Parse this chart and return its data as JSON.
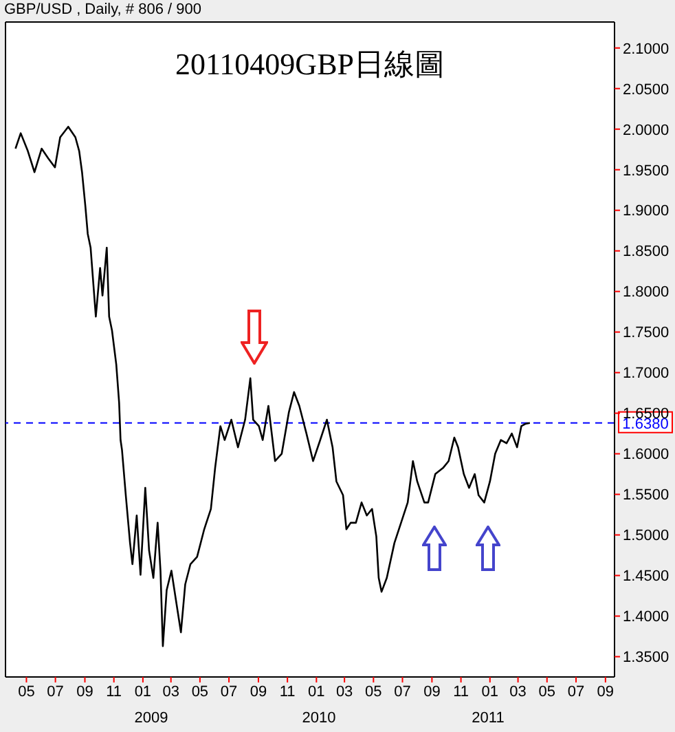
{
  "chart_data": {
    "type": "line",
    "title": "20110409GBP日線圖",
    "subtitle": "GBP/USD , Daily, # 806 / 900",
    "x": [
      "2008-04-08",
      "2008-04-19",
      "2008-05-04",
      "2008-05-18",
      "2008-06-02",
      "2008-06-16",
      "2008-06-30",
      "2008-07-11",
      "2008-07-28",
      "2008-08-12",
      "2008-08-20",
      "2008-08-26",
      "2008-09-02",
      "2008-09-07",
      "2008-09-13",
      "2008-09-24",
      "2008-10-03",
      "2008-10-08",
      "2008-10-17",
      "2008-10-22",
      "2008-10-28",
      "2008-11-06",
      "2008-11-12",
      "2008-11-15",
      "2008-11-18",
      "2008-11-26",
      "2008-12-05",
      "2008-12-10",
      "2008-12-19",
      "2008-12-27",
      "2009-01-06",
      "2009-01-14",
      "2009-01-23",
      "2009-02-01",
      "2009-02-07",
      "2009-02-12",
      "2009-02-20",
      "2009-03-02",
      "2009-03-13",
      "2009-03-22",
      "2009-03-31",
      "2009-04-11",
      "2009-04-25",
      "2009-05-10",
      "2009-05-24",
      "2009-06-02",
      "2009-06-13",
      "2009-06-22",
      "2009-07-06",
      "2009-07-20",
      "2009-08-04",
      "2009-08-15",
      "2009-08-21",
      "2009-09-02",
      "2009-09-10",
      "2009-09-22",
      "2009-10-06",
      "2009-10-20",
      "2009-11-04",
      "2009-11-15",
      "2009-11-26",
      "2009-12-11",
      "2009-12-25",
      "2010-01-09",
      "2010-01-23",
      "2010-02-04",
      "2010-02-12",
      "2010-02-26",
      "2010-03-05",
      "2010-03-14",
      "2010-03-25",
      "2010-04-06",
      "2010-04-17",
      "2010-04-28",
      "2010-05-07",
      "2010-05-12",
      "2010-05-18",
      "2010-05-29",
      "2010-06-14",
      "2010-06-28",
      "2010-07-12",
      "2010-07-23",
      "2010-08-01",
      "2010-08-16",
      "2010-08-24",
      "2010-09-08",
      "2010-09-25",
      "2010-10-06",
      "2010-10-18",
      "2010-10-26",
      "2010-11-07",
      "2010-11-18",
      "2010-11-30",
      "2010-12-08",
      "2010-12-20",
      "2011-01-01",
      "2011-01-12",
      "2011-01-24",
      "2011-02-05",
      "2011-02-16",
      "2011-02-27",
      "2011-03-08",
      "2011-03-17",
      "2011-03-26"
    ],
    "series": [
      {
        "color": "#000000",
        "values": [
          1.976,
          1.995,
          1.973,
          1.947,
          1.976,
          1.964,
          1.953,
          1.99,
          2.003,
          1.99,
          1.973,
          1.947,
          1.905,
          1.871,
          1.854,
          1.769,
          1.829,
          1.795,
          1.854,
          1.769,
          1.752,
          1.71,
          1.663,
          1.617,
          1.605,
          1.549,
          1.49,
          1.464,
          1.524,
          1.451,
          1.558,
          1.481,
          1.447,
          1.515,
          1.456,
          1.363,
          1.432,
          1.456,
          1.414,
          1.38,
          1.439,
          1.464,
          1.473,
          1.507,
          1.532,
          1.583,
          1.634,
          1.617,
          1.642,
          1.608,
          1.642,
          1.693,
          1.642,
          1.634,
          1.617,
          1.659,
          1.591,
          1.6,
          1.651,
          1.676,
          1.659,
          1.625,
          1.591,
          1.617,
          1.642,
          1.608,
          1.566,
          1.549,
          1.507,
          1.515,
          1.515,
          1.54,
          1.524,
          1.532,
          1.498,
          1.447,
          1.43,
          1.447,
          1.49,
          1.515,
          1.54,
          1.591,
          1.566,
          1.54,
          1.54,
          1.575,
          1.583,
          1.591,
          1.62,
          1.608,
          1.575,
          1.558,
          1.575,
          1.549,
          1.54,
          1.566,
          1.6,
          1.617,
          1.613,
          1.625,
          1.608,
          1.634,
          1.637,
          1.638
        ]
      }
    ],
    "xlim": [
      "2008-03-18",
      "2011-09-20"
    ],
    "xticks": [
      {
        "value": "2008-05-01",
        "label": "05"
      },
      {
        "value": "2008-07-01",
        "label": "07"
      },
      {
        "value": "2008-09-01",
        "label": "09"
      },
      {
        "value": "2008-11-01",
        "label": "11"
      },
      {
        "value": "2009-01-01",
        "label": "01"
      },
      {
        "value": "2009-03-01",
        "label": "03"
      },
      {
        "value": "2009-05-01",
        "label": "05"
      },
      {
        "value": "2009-07-01",
        "label": "07"
      },
      {
        "value": "2009-09-01",
        "label": "09"
      },
      {
        "value": "2009-11-01",
        "label": "11"
      },
      {
        "value": "2010-01-01",
        "label": "01"
      },
      {
        "value": "2010-03-01",
        "label": "03"
      },
      {
        "value": "2010-05-01",
        "label": "05"
      },
      {
        "value": "2010-07-01",
        "label": "07"
      },
      {
        "value": "2010-09-01",
        "label": "09"
      },
      {
        "value": "2010-11-01",
        "label": "11"
      },
      {
        "value": "2011-01-01",
        "label": "01"
      },
      {
        "value": "2011-03-01",
        "label": "03"
      },
      {
        "value": "2011-05-01",
        "label": "05"
      },
      {
        "value": "2011-07-01",
        "label": "07"
      },
      {
        "value": "2011-09-01",
        "label": "09"
      }
    ],
    "ylim": [
      1.325,
      2.132
    ],
    "yticks": [
      {
        "value": 1.35,
        "label": "1.3500"
      },
      {
        "value": 1.4,
        "label": "1.4000"
      },
      {
        "value": 1.45,
        "label": "1.4500"
      },
      {
        "value": 1.5,
        "label": "1.5000"
      },
      {
        "value": 1.55,
        "label": "1.5500"
      },
      {
        "value": 1.6,
        "label": "1.6000"
      },
      {
        "value": 1.65,
        "label": "1.6500"
      },
      {
        "value": 1.7,
        "label": "1.7000"
      },
      {
        "value": 1.75,
        "label": "1.7500"
      },
      {
        "value": 1.8,
        "label": "1.8000"
      },
      {
        "value": 1.85,
        "label": "1.8500"
      },
      {
        "value": 1.9,
        "label": "1.9000"
      },
      {
        "value": 1.95,
        "label": "1.9500"
      },
      {
        "value": 2.0,
        "label": "2.0000"
      },
      {
        "value": 2.05,
        "label": "2.0500"
      },
      {
        "value": 2.1,
        "label": "2.1000"
      }
    ],
    "ref_lines": [
      {
        "axis": "y",
        "value": 1.638,
        "label": "1.6380",
        "color": "#0000ff",
        "line_style": "dashed"
      }
    ],
    "annotations": [
      "2009",
      "2010",
      "2011"
    ],
    "marker": "none",
    "line_style": "solid"
  }
}
